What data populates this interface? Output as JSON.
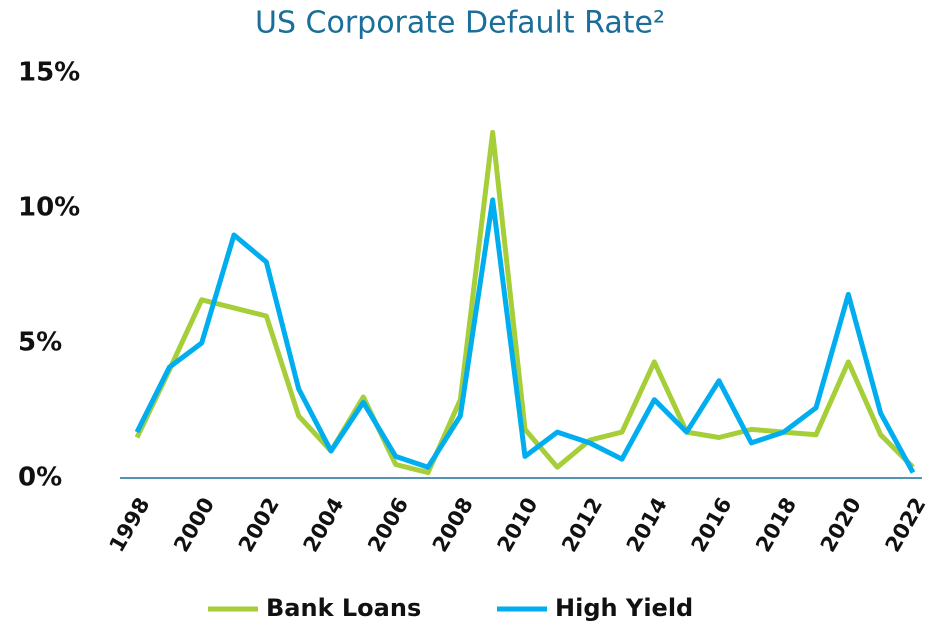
{
  "chart_data": {
    "type": "line",
    "title": "US Corporate Default Rate²",
    "categories": [
      "1998",
      null,
      "2000",
      null,
      "2002",
      null,
      "2004",
      null,
      "2006",
      null,
      "2008",
      null,
      "2010",
      null,
      "2012",
      null,
      "2014",
      null,
      "2016",
      null,
      "2018",
      null,
      "2020",
      null,
      "2022"
    ],
    "series": [
      {
        "name": "Bank Loans",
        "color": "#a6ce39",
        "values": [
          1.5,
          4.0,
          6.6,
          6.3,
          6.0,
          2.3,
          1.0,
          3.0,
          0.5,
          0.2,
          2.9,
          12.8,
          1.8,
          0.4,
          1.4,
          1.7,
          4.3,
          1.7,
          1.5,
          1.8,
          1.7,
          1.6,
          4.3,
          1.6,
          0.4
        ]
      },
      {
        "name": "High Yield",
        "color": "#00aeef",
        "values": [
          1.7,
          4.1,
          5.0,
          9.0,
          8.0,
          3.3,
          1.0,
          2.8,
          0.8,
          0.4,
          2.3,
          10.3,
          0.8,
          1.7,
          1.3,
          0.7,
          2.9,
          1.7,
          3.6,
          1.3,
          1.7,
          2.6,
          6.8,
          2.4,
          0.2
        ]
      }
    ],
    "ylim": [
      0,
      15
    ],
    "yticks": [
      {
        "value": 0,
        "label": "0%"
      },
      {
        "value": 5,
        "label": "5%"
      },
      {
        "value": 10,
        "label": "10%"
      },
      {
        "value": 15,
        "label": "15%"
      }
    ],
    "grid": false
  }
}
